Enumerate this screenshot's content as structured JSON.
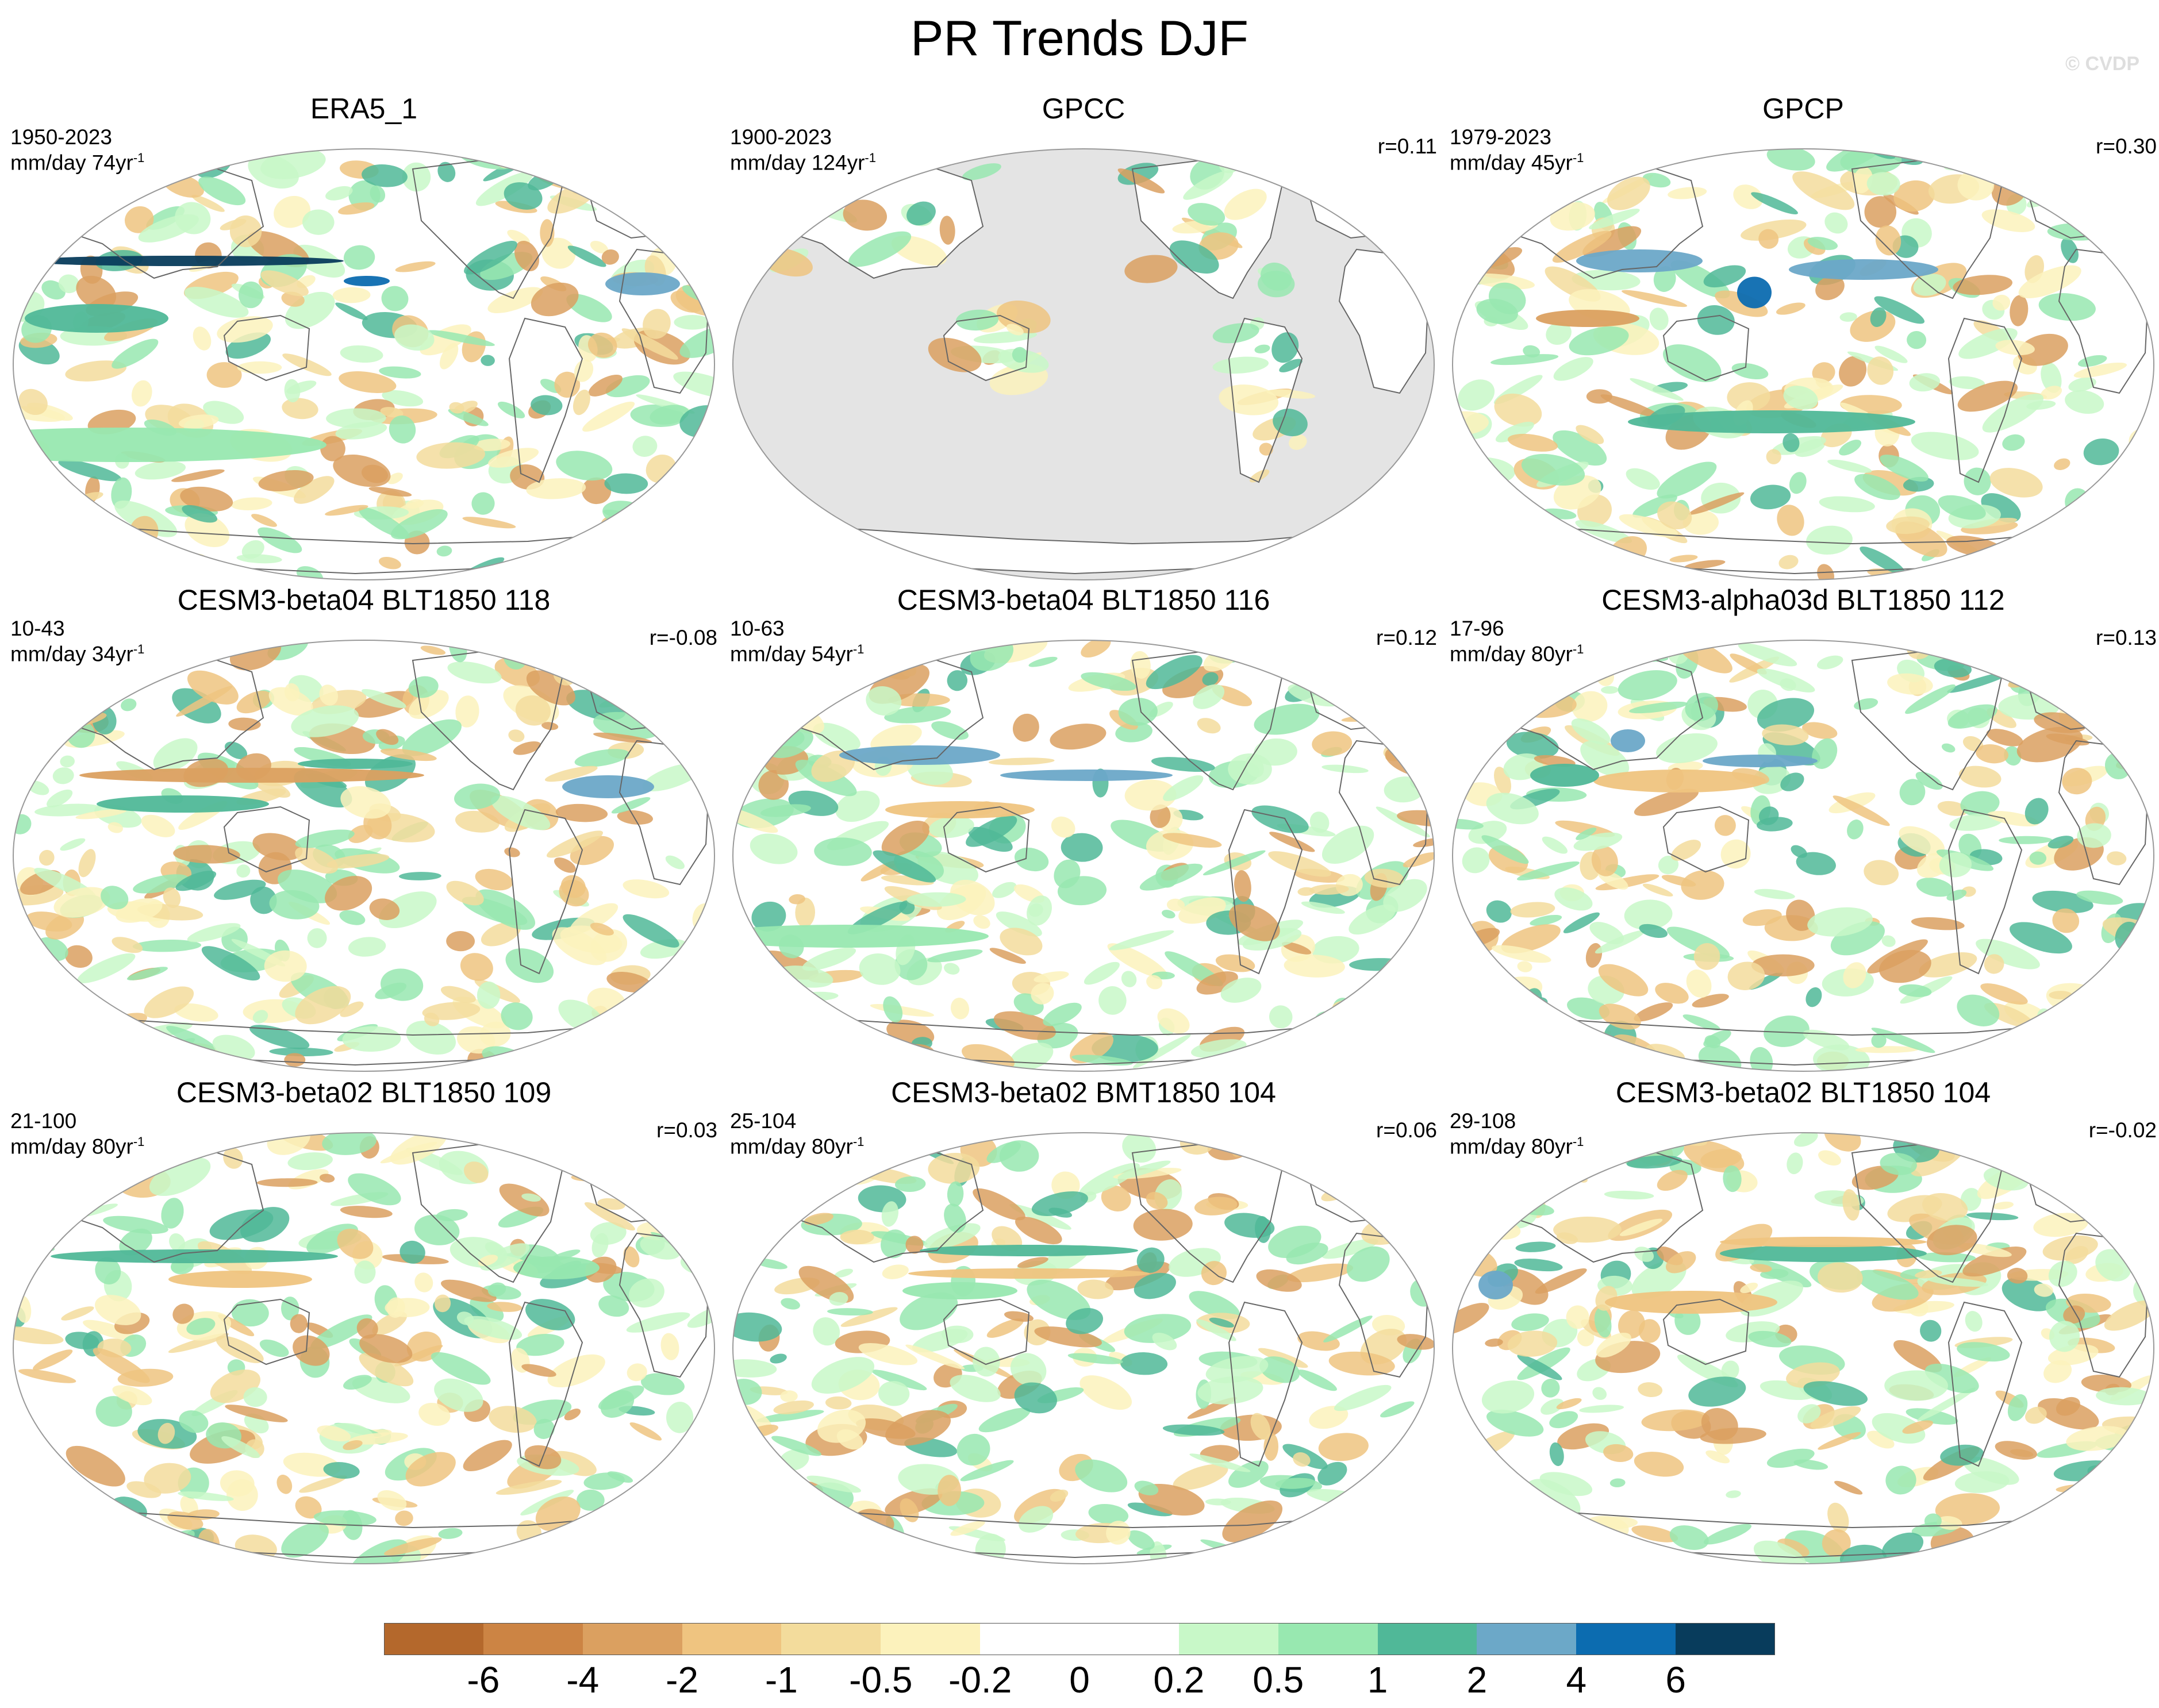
{
  "title": "PR Trends DJF",
  "watermark": "© CVDP",
  "colors": {
    "ocean_masked": "#e4e4e4",
    "land": "#ffffff",
    "coast": "#666666",
    "border": "#999999"
  },
  "panels": [
    {
      "title": "ERA5_1",
      "period": "1950-2023",
      "units_prefix": "mm/day 74yr",
      "units_sup": "-1",
      "corr": "",
      "pattern": "era5",
      "masked_ocean": false
    },
    {
      "title": "GPCC",
      "period": "1900-2023",
      "units_prefix": "mm/day 124yr",
      "units_sup": "-1",
      "corr": "r=0.11",
      "pattern": "gpcc",
      "masked_ocean": true
    },
    {
      "title": "GPCP",
      "period": "1979-2023",
      "units_prefix": "mm/day 45yr",
      "units_sup": "-1",
      "corr": "r=0.30",
      "pattern": "gpcp",
      "masked_ocean": false
    },
    {
      "title": "CESM3-beta04 BLT1850 118",
      "period": "10-43",
      "units_prefix": "mm/day 34yr",
      "units_sup": "-1",
      "corr": "r=-0.08",
      "pattern": "m1",
      "masked_ocean": false
    },
    {
      "title": "CESM3-beta04 BLT1850 116",
      "period": "10-63",
      "units_prefix": "mm/day 54yr",
      "units_sup": "-1",
      "corr": "r=0.12",
      "pattern": "m2",
      "masked_ocean": false
    },
    {
      "title": "CESM3-alpha03d BLT1850 112",
      "period": "17-96",
      "units_prefix": "mm/day 80yr",
      "units_sup": "-1",
      "corr": "r=0.13",
      "pattern": "m3",
      "masked_ocean": false
    },
    {
      "title": "CESM3-beta02 BLT1850 109",
      "period": "21-100",
      "units_prefix": "mm/day 80yr",
      "units_sup": "-1",
      "corr": "r=0.03",
      "pattern": "m4",
      "masked_ocean": false
    },
    {
      "title": "CESM3-beta02 BMT1850 104",
      "period": "25-104",
      "units_prefix": "mm/day 80yr",
      "units_sup": "-1",
      "corr": "r=0.06",
      "pattern": "m5",
      "masked_ocean": false
    },
    {
      "title": "CESM3-beta02 BLT1850 104",
      "period": "29-108",
      "units_prefix": "mm/day 80yr",
      "units_sup": "-1",
      "corr": "r=-0.02",
      "pattern": "m6",
      "masked_ocean": false
    }
  ],
  "colorbar": {
    "bins": [
      {
        "color": "#b4682c"
      },
      {
        "color": "#cc8444"
      },
      {
        "color": "#dba060"
      },
      {
        "color": "#efc480"
      },
      {
        "color": "#f3dc9c"
      },
      {
        "color": "#fcf2bc"
      },
      {
        "color": "#ffffff"
      },
      {
        "color": "#ffffff"
      },
      {
        "color": "#c8f8c8"
      },
      {
        "color": "#98e8b0"
      },
      {
        "color": "#50b898"
      },
      {
        "color": "#6ca8c8"
      },
      {
        "color": "#0c6cb0"
      },
      {
        "color": "#083c5c"
      }
    ],
    "tick_labels": [
      "-6",
      "-4",
      "-2",
      "-1",
      "-0.5",
      "-0.2",
      "0",
      "0.2",
      "0.5",
      "1",
      "2",
      "4",
      "6"
    ]
  }
}
